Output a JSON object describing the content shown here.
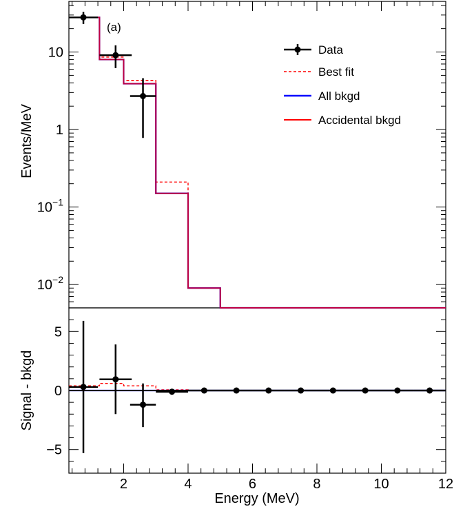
{
  "chart_data": [
    {
      "panel": "top",
      "type": "line",
      "annotation": "(a)",
      "ylabel": "Events/MeV",
      "yscale": "log",
      "xlim": [
        0.3,
        12
      ],
      "ylim": [
        0.005,
        45
      ],
      "y_ticks": [
        {
          "label": "10",
          "value": 10
        },
        {
          "label": "1",
          "value": 1
        },
        {
          "label": "10−1",
          "value": 0.1
        },
        {
          "label": "10−2",
          "value": 0.01
        }
      ],
      "legend": {
        "placement": "top-right",
        "entries": [
          "Data",
          "Best fit",
          "All bkgd",
          "Accidental bkgd"
        ]
      },
      "bin_edges": [
        0.3,
        1.25,
        2,
        3,
        4,
        5,
        6,
        7,
        8,
        9,
        10,
        11,
        12
      ],
      "series": [
        {
          "name": "Best fit",
          "style": "dashed",
          "color": "#ff0000",
          "values": [
            28,
            8.6,
            4.3,
            0.21,
            0.009,
            0,
            0,
            0,
            0,
            0,
            0,
            0
          ]
        },
        {
          "name": "All bkgd",
          "style": "solid",
          "color": "#0000ff",
          "values": [
            28,
            8.0,
            3.9,
            0.15,
            0.009,
            0,
            0,
            0,
            0,
            0,
            0,
            0
          ]
        },
        {
          "name": "Accidental bkgd",
          "style": "solid",
          "color": "#ff0000",
          "values": [
            28,
            8.0,
            3.9,
            0.15,
            0.009,
            0,
            0,
            0,
            0,
            0,
            0,
            0
          ]
        }
      ],
      "data_points": [
        {
          "x": 0.75,
          "y": 28,
          "xerr": 0.45,
          "ylo": 23,
          "yhi": 33
        },
        {
          "x": 1.75,
          "y": 9.1,
          "xerr": 0.5,
          "ylo": 6.2,
          "yhi": 12.2
        },
        {
          "x": 2.6,
          "y": 2.7,
          "xerr": 0.4,
          "ylo": 0.78,
          "yhi": 4.6
        }
      ]
    },
    {
      "panel": "bottom",
      "type": "line",
      "xlabel": "Energy (MeV)",
      "ylabel": "Signal - bkgd",
      "xlim": [
        0.3,
        12
      ],
      "ylim": [
        -7,
        7
      ],
      "x_ticks": [
        2,
        4,
        6,
        8,
        10,
        12
      ],
      "y_ticks": [
        {
          "label": "5",
          "value": 5
        },
        {
          "label": "0",
          "value": 0
        },
        {
          "label": "−5",
          "value": -5
        }
      ],
      "bin_edges": [
        0.3,
        1.25,
        2,
        3,
        4,
        5,
        6,
        7,
        8,
        9,
        10,
        11,
        12
      ],
      "series": [
        {
          "name": "Best fit",
          "style": "dashed",
          "color": "#ff0000",
          "values": [
            0.4,
            0.6,
            0.4,
            0.06,
            0,
            0,
            0,
            0,
            0,
            0,
            0,
            0
          ]
        },
        {
          "name": "All bkgd",
          "style": "solid",
          "color": "#0000ff",
          "values": [
            0,
            0,
            0,
            0,
            0,
            0,
            0,
            0,
            0,
            0,
            0,
            0
          ]
        },
        {
          "name": "Accidental bkgd",
          "style": "solid",
          "color": "#ff0000",
          "values": [
            0,
            0,
            0,
            0,
            0,
            0,
            0,
            0,
            0,
            0,
            0,
            0
          ]
        }
      ],
      "data_points": [
        {
          "x": 0.75,
          "y": 0.3,
          "xerr": 0.45,
          "ylo": -5.3,
          "yhi": 5.9
        },
        {
          "x": 1.75,
          "y": 0.95,
          "xerr": 0.5,
          "ylo": -2.0,
          "yhi": 3.9
        },
        {
          "x": 2.6,
          "y": -1.2,
          "xerr": 0.4,
          "ylo": -3.1,
          "yhi": 0.6
        },
        {
          "x": 3.5,
          "y": -0.1,
          "xerr": 0.5,
          "ylo": -0.2,
          "yhi": 0.0
        },
        {
          "x": 4.5,
          "y": 0,
          "xerr": 0.5,
          "ylo": 0,
          "yhi": 0
        },
        {
          "x": 5.5,
          "y": 0,
          "xerr": 0.5,
          "ylo": 0,
          "yhi": 0
        },
        {
          "x": 6.5,
          "y": 0,
          "xerr": 0.5,
          "ylo": 0,
          "yhi": 0
        },
        {
          "x": 7.5,
          "y": 0,
          "xerr": 0.5,
          "ylo": 0,
          "yhi": 0
        },
        {
          "x": 8.5,
          "y": 0,
          "xerr": 0.5,
          "ylo": 0,
          "yhi": 0
        },
        {
          "x": 9.5,
          "y": 0,
          "xerr": 0.5,
          "ylo": 0,
          "yhi": 0
        },
        {
          "x": 10.5,
          "y": 0,
          "xerr": 0.5,
          "ylo": 0,
          "yhi": 0
        },
        {
          "x": 11.5,
          "y": 0,
          "xerr": 0.5,
          "ylo": 0,
          "yhi": 0
        }
      ]
    }
  ]
}
